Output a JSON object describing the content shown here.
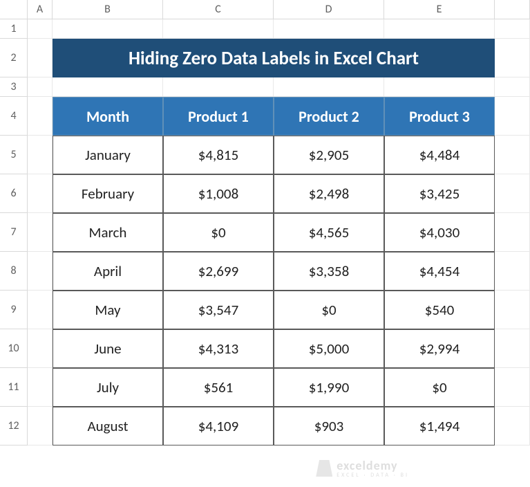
{
  "columns": [
    "A",
    "B",
    "C",
    "D",
    "E"
  ],
  "rows": [
    "1",
    "2",
    "3",
    "4",
    "5",
    "6",
    "7",
    "8",
    "9",
    "10",
    "11",
    "12"
  ],
  "title": "Hiding Zero Data Labels in Excel Chart",
  "table": {
    "headers": [
      "Month",
      "Product 1",
      "Product 2",
      "Product 3"
    ],
    "data": [
      [
        "January",
        "$4,815",
        "$2,905",
        "$4,484"
      ],
      [
        "February",
        "$1,008",
        "$2,498",
        "$3,425"
      ],
      [
        "March",
        "$0",
        "$4,565",
        "$4,030"
      ],
      [
        "April",
        "$2,699",
        "$3,358",
        "$4,454"
      ],
      [
        "May",
        "$3,547",
        "$0",
        "$540"
      ],
      [
        "June",
        "$4,313",
        "$5,000",
        "$2,994"
      ],
      [
        "July",
        "$561",
        "$1,990",
        "$0"
      ],
      [
        "August",
        "$4,109",
        "$903",
        "$1,494"
      ]
    ]
  },
  "watermark": {
    "brand": "exceldemy",
    "tagline": "EXCEL · DATA · BI"
  },
  "colors": {
    "title_bg": "#1f4e78",
    "header_bg": "#2f75b5",
    "grid_line": "#e8e8e8",
    "hdr_line": "#d9d9d9",
    "table_border": "#595959"
  }
}
